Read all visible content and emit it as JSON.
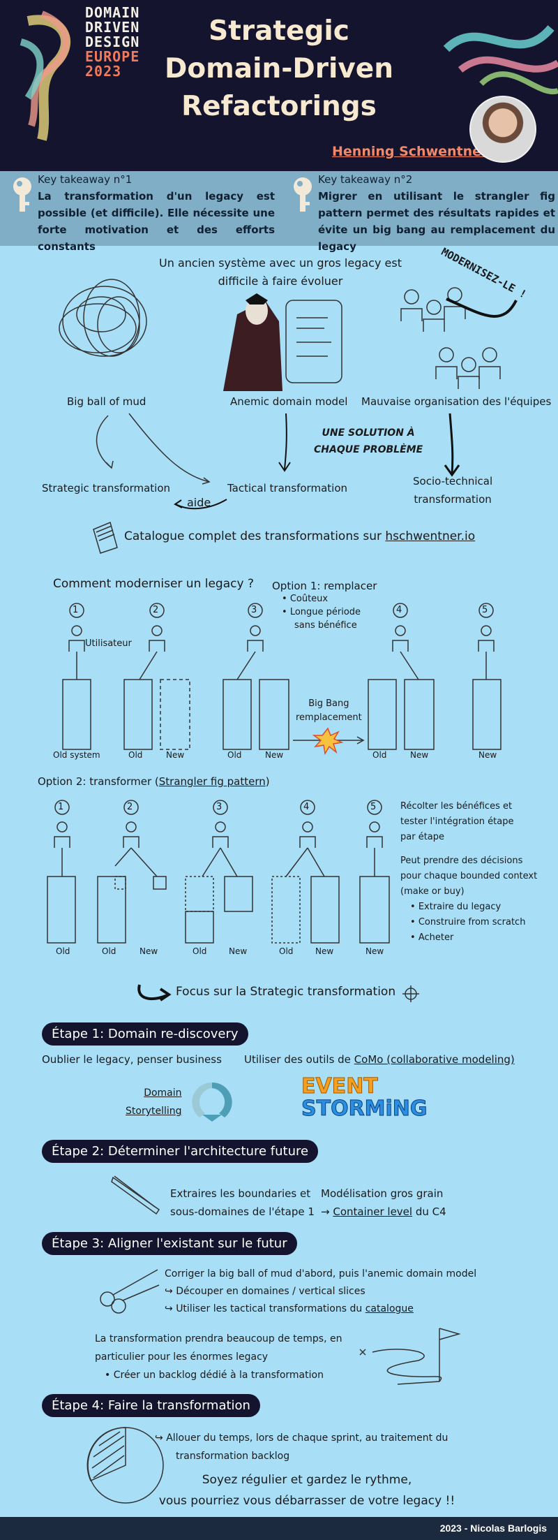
{
  "header": {
    "logo": [
      "DOMAIN",
      "DRIVEN",
      "DESIGN",
      "EUROPE",
      "2023"
    ],
    "title_lines": [
      "Strategic",
      "Domain-Driven",
      "Refactorings"
    ],
    "author": "Henning Schwentner"
  },
  "takeaways": [
    {
      "title": "Key takeaway n°1",
      "text": "La transformation d'un legacy est possible (et difficile). Elle nécessite une forte motivation et des efforts constants"
    },
    {
      "title": "Key takeaway n°2",
      "text": "Migrer en utilisant le strangler fig pattern permet des résultats rapides et évite un big bang au remplacement du legacy"
    }
  ],
  "problems": {
    "intro_1": "Un ancien système avec un gros legacy est",
    "intro_2": "difficile à faire évoluer",
    "stamp": "MODERNISEZ-LE !",
    "items": [
      "Big ball of mud",
      "Anemic domain model",
      "Mauvaise organisation des l'équipes"
    ],
    "solution_1": "UNE SOLUTION À",
    "solution_2": "CHAQUE PROBLÈME",
    "transforms": [
      "Strategic transformation",
      "Tactical transformation",
      "Socio-technical",
      "transformation"
    ],
    "aide": "aide",
    "catalogue_prefix": "Catalogue complet des transformations sur ",
    "catalogue_link": "hschwentner.io"
  },
  "option1": {
    "question": "Comment moderniser un legacy ?",
    "title": "Option 1: remplacer",
    "bullets": [
      "Coûteux",
      "Longue période",
      "sans bénéfice"
    ],
    "user": "Utilisateur",
    "numbers": [
      "1",
      "2",
      "3",
      "4",
      "5"
    ],
    "labels": [
      "Old system",
      "Old",
      "New",
      "Old",
      "New",
      "Old",
      "New",
      "New"
    ],
    "bigbang_1": "Big Bang",
    "bigbang_2": "remplacement"
  },
  "option2": {
    "title_prefix": "Option 2: transformer (",
    "title_link": "Strangler fig pattern",
    "title_suffix": ")",
    "numbers": [
      "1",
      "2",
      "3",
      "4",
      "5"
    ],
    "labels": [
      "Old",
      "Old",
      "New",
      "Old",
      "New",
      "Old",
      "New",
      "New"
    ],
    "side_1": [
      "Récolter les bénéfices et",
      "tester l'intégration étape",
      "par étape"
    ],
    "side_2": [
      "Peut prendre des décisions",
      "pour chaque bounded context",
      "(make or buy)"
    ],
    "side_bullets": [
      "Extraire du legacy",
      "Construire from scratch",
      "Acheter"
    ]
  },
  "focus": "Focus sur la Strategic transformation",
  "steps": {
    "s1": {
      "label": "Étape 1: Domain re-discovery",
      "left": "Oublier le legacy, penser business",
      "right_prefix": "Utiliser des outils de ",
      "right_link": "CoMo (collaborative modeling)",
      "ds_1": "Domain",
      "ds_2": "Storytelling",
      "es_1": "EVENT",
      "es_2": "STORMiNG"
    },
    "s2": {
      "label": "Étape 2: Déterminer l'architecture future",
      "a_1": "Extraires les boundaries et",
      "a_2": "sous-domaines de l'étape 1",
      "b_1": "Modélisation gros grain",
      "b_2_prefix": "→ ",
      "b_2_link": "Container level",
      "b_2_suffix": " du C4"
    },
    "s3": {
      "label": "Étape 3: Aligner l'existant sur le futur",
      "l1": "Corriger la big ball of mud d'abord, puis l'anemic domain model",
      "l2": "Découper en domaines / vertical slices",
      "l3_prefix": "Utiliser les tactical transformations du ",
      "l3_link": "catalogue",
      "p1": "La transformation prendra beaucoup de temps, en",
      "p2": "particulier pour les énormes legacy",
      "p3": "Créer un backlog dédié à la transformation"
    },
    "s4": {
      "label": "Étape 4: Faire la transformation",
      "l1": "Allouer du temps, lors de chaque sprint, au traitement du",
      "l2": "transformation backlog",
      "c1": "Soyez régulier et gardez le rythme,",
      "c2": "vous pourriez vous débarrasser de votre legacy !!"
    }
  },
  "footer": "2023 - Nicolas Barlogis",
  "colors": {
    "background": "#a9def7",
    "header": "#14142e",
    "accent": "#f27a5a",
    "takeaway_band": "#7faec6"
  }
}
